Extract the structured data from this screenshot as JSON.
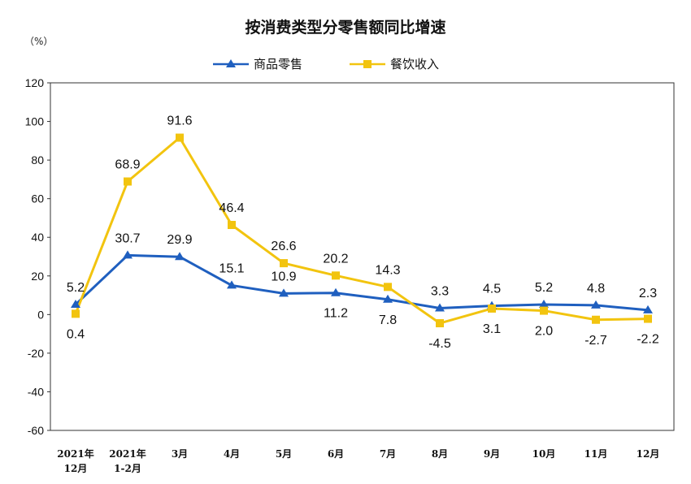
{
  "chart_data": {
    "type": "line",
    "title": "按消费类型分零售额同比增速",
    "unit_label": "（%）",
    "categories": [
      [
        "2021年",
        "12月"
      ],
      [
        "2021年",
        "1-2月"
      ],
      [
        "3月"
      ],
      [
        "4月"
      ],
      [
        "5月"
      ],
      [
        "6月"
      ],
      [
        "7月"
      ],
      [
        "8月"
      ],
      [
        "9月"
      ],
      [
        "10月"
      ],
      [
        "11月"
      ],
      [
        "12月"
      ]
    ],
    "ylim": [
      -60,
      120
    ],
    "yticks": [
      -60,
      -40,
      -20,
      0,
      20,
      40,
      60,
      80,
      100,
      120
    ],
    "legend_position": "top-center",
    "series": [
      {
        "name": "商品零售",
        "color": "#1f5fbf",
        "marker": "triangle",
        "values": [
          5.2,
          30.7,
          29.9,
          15.1,
          10.9,
          11.2,
          7.8,
          3.3,
          4.5,
          5.2,
          4.8,
          2.3
        ],
        "labels": [
          "5.2",
          "30.7",
          "29.9",
          "15.1",
          "10.9",
          "11.2",
          "7.8",
          "3.3",
          "4.5",
          "5.2",
          "4.8",
          "2.3"
        ],
        "label_side": [
          "above",
          "above",
          "above",
          "above",
          "above",
          "below",
          "below",
          "above",
          "above",
          "above",
          "above",
          "above"
        ]
      },
      {
        "name": "餐饮收入",
        "color": "#f2c40f",
        "marker": "square",
        "values": [
          0.4,
          68.9,
          91.6,
          46.4,
          26.6,
          20.2,
          14.3,
          -4.5,
          3.1,
          2.0,
          -2.7,
          -2.2
        ],
        "labels": [
          "0.4",
          "68.9",
          "91.6",
          "46.4",
          "26.6",
          "20.2",
          "14.3",
          "-4.5",
          "3.1",
          "2.0",
          "-2.7",
          "-2.2"
        ],
        "label_side": [
          "below",
          "above",
          "above",
          "above",
          "above",
          "above",
          "above",
          "below",
          "below",
          "below",
          "below",
          "below"
        ]
      }
    ]
  }
}
